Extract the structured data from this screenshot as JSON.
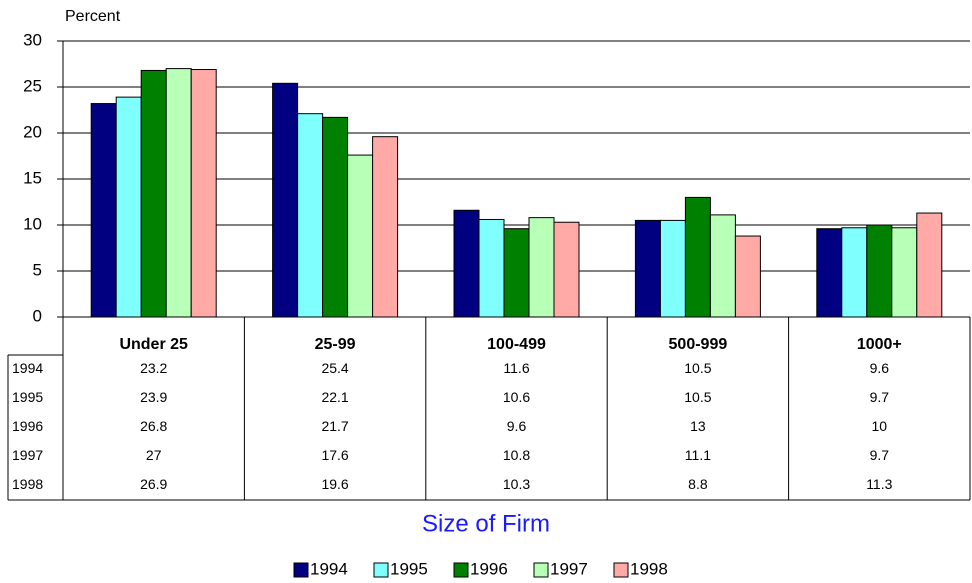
{
  "chart_data": {
    "type": "bar",
    "y_label": "Percent",
    "x_label": "Size of Firm",
    "categories": [
      "Under 25",
      "25-99",
      "100-499",
      "500-999",
      "1000+"
    ],
    "series": [
      {
        "name": "1994",
        "color": "#000080",
        "values": [
          23.2,
          25.4,
          11.6,
          10.5,
          9.6
        ]
      },
      {
        "name": "1995",
        "color": "#80ffff",
        "values": [
          23.9,
          22.1,
          10.6,
          10.5,
          9.7
        ]
      },
      {
        "name": "1996",
        "color": "#008000",
        "values": [
          26.8,
          21.7,
          9.6,
          13,
          10
        ]
      },
      {
        "name": "1997",
        "color": "#b8ffb8",
        "values": [
          27,
          17.6,
          10.8,
          11.1,
          9.7
        ]
      },
      {
        "name": "1998",
        "color": "#ffaaa6",
        "values": [
          26.9,
          19.6,
          10.3,
          8.8,
          11.3
        ]
      }
    ],
    "ylim": [
      0,
      30
    ],
    "yticks": [
      0,
      5,
      10,
      15,
      20,
      25,
      30
    ],
    "grid": true,
    "legend": "bottom",
    "data_table": true
  }
}
